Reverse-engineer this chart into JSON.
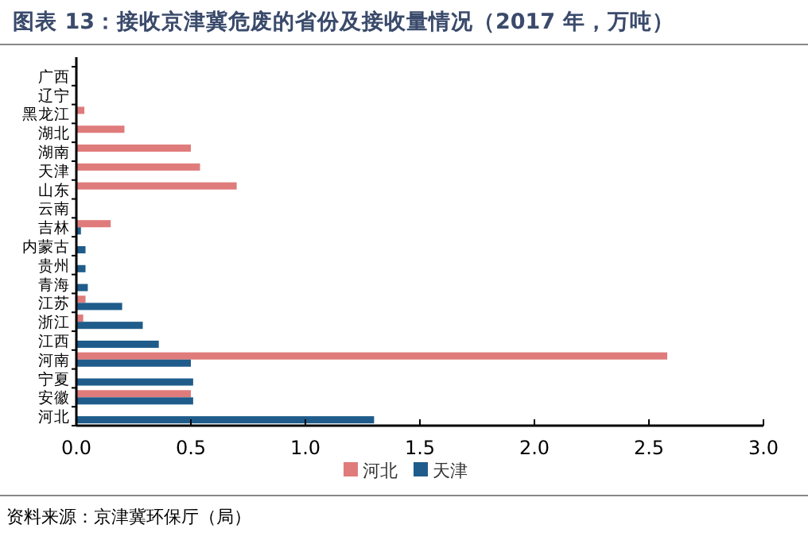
{
  "chart_data": {
    "type": "bar",
    "orientation": "horizontal",
    "title": "图表 13：接收京津冀危废的省份及接收量情况（2017 年，万吨）",
    "categories": [
      "广西",
      "辽宁",
      "黑龙江",
      "湖北",
      "湖南",
      "天津",
      "山东",
      "云南",
      "吉林",
      "内蒙古",
      "贵州",
      "青海",
      "江苏",
      "浙江",
      "江西",
      "河南",
      "宁夏",
      "安徽",
      "河北"
    ],
    "series": [
      {
        "name": "河北",
        "color": "#e07b7b",
        "values": [
          null,
          null,
          0.035,
          0.21,
          0.5,
          0.54,
          0.7,
          null,
          0.15,
          null,
          null,
          null,
          0.04,
          0.03,
          null,
          2.58,
          null,
          0.5,
          null
        ]
      },
      {
        "name": "天津",
        "color": "#1f5c8b",
        "values": [
          null,
          null,
          null,
          null,
          null,
          null,
          null,
          null,
          0.02,
          0.04,
          0.04,
          0.05,
          0.2,
          0.29,
          0.36,
          0.5,
          0.51,
          0.51,
          1.3
        ]
      }
    ],
    "xlim": [
      0,
      3
    ],
    "xticks": [
      {
        "value": 0,
        "label": "0.0"
      },
      0.5,
      {
        "value": 1,
        "label": "1.0"
      },
      1.5,
      {
        "value": 2,
        "label": "2.0"
      },
      2.5,
      {
        "value": 3,
        "label": "3.0"
      }
    ],
    "legend": "bottom",
    "annotations": [
      "资料来源：京津冀环保厅（局）"
    ]
  }
}
